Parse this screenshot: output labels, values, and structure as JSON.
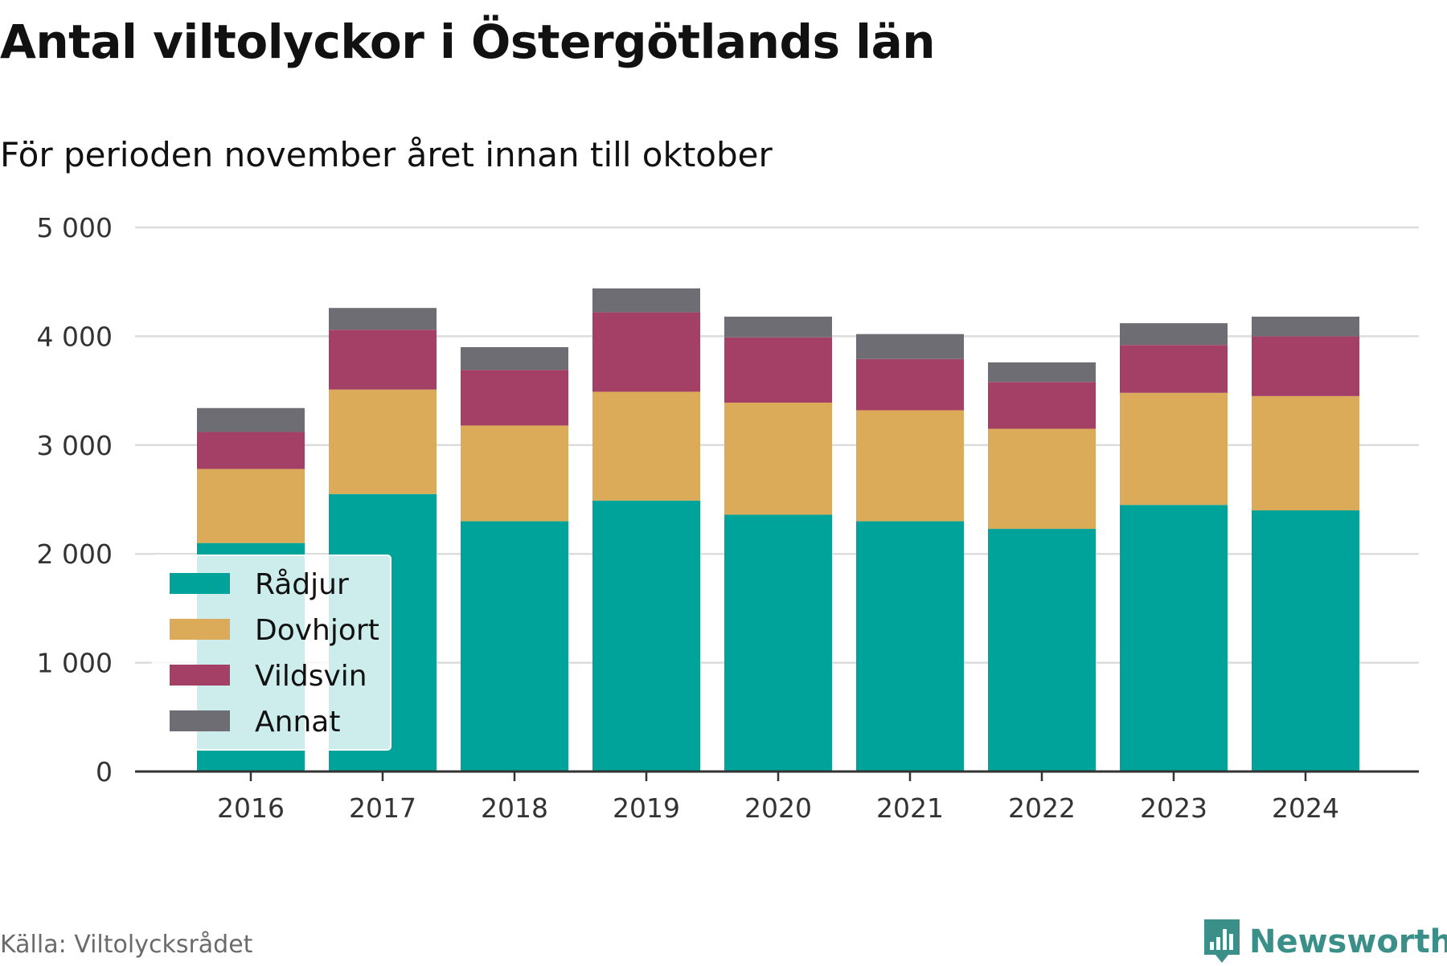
{
  "header": {
    "title": "Antal viltolyckor i Östergötlands län",
    "subtitle": "För perioden november året innan till oktober"
  },
  "footer": {
    "source": "Källa: Viltolycksrådet",
    "brand": "Newsworthy",
    "brand_icon": "bar-chart-speech-bubble-icon"
  },
  "colors": {
    "Rådjur": "#00a39a",
    "Dovhjort": "#dbab5a",
    "Vildsvin": "#a44066",
    "Annat": "#6e6d73",
    "grid": "#dcdcdc",
    "axis": "#333333",
    "legend_bg": "#ffffff",
    "brand": "#3a8f88"
  },
  "chart_data": {
    "type": "bar",
    "stacked": true,
    "categories": [
      "2016",
      "2017",
      "2018",
      "2019",
      "2020",
      "2021",
      "2022",
      "2023",
      "2024"
    ],
    "series": [
      {
        "name": "Rådjur",
        "values": [
          2100,
          2550,
          2300,
          2490,
          2360,
          2300,
          2230,
          2450,
          2400
        ]
      },
      {
        "name": "Dovhjort",
        "values": [
          680,
          960,
          880,
          1000,
          1030,
          1020,
          920,
          1030,
          1050
        ]
      },
      {
        "name": "Vildsvin",
        "values": [
          340,
          550,
          510,
          730,
          600,
          470,
          430,
          440,
          550
        ]
      },
      {
        "name": "Annat",
        "values": [
          220,
          200,
          210,
          220,
          190,
          230,
          180,
          200,
          180
        ]
      }
    ],
    "ylim": [
      0,
      5000
    ],
    "yticks": [
      0,
      1000,
      2000,
      3000,
      4000,
      5000
    ],
    "ytick_labels": [
      "0",
      "1 000",
      "2 000",
      "3 000",
      "4 000",
      "5 000"
    ],
    "grid": true,
    "legend_position": "bottom-left"
  }
}
